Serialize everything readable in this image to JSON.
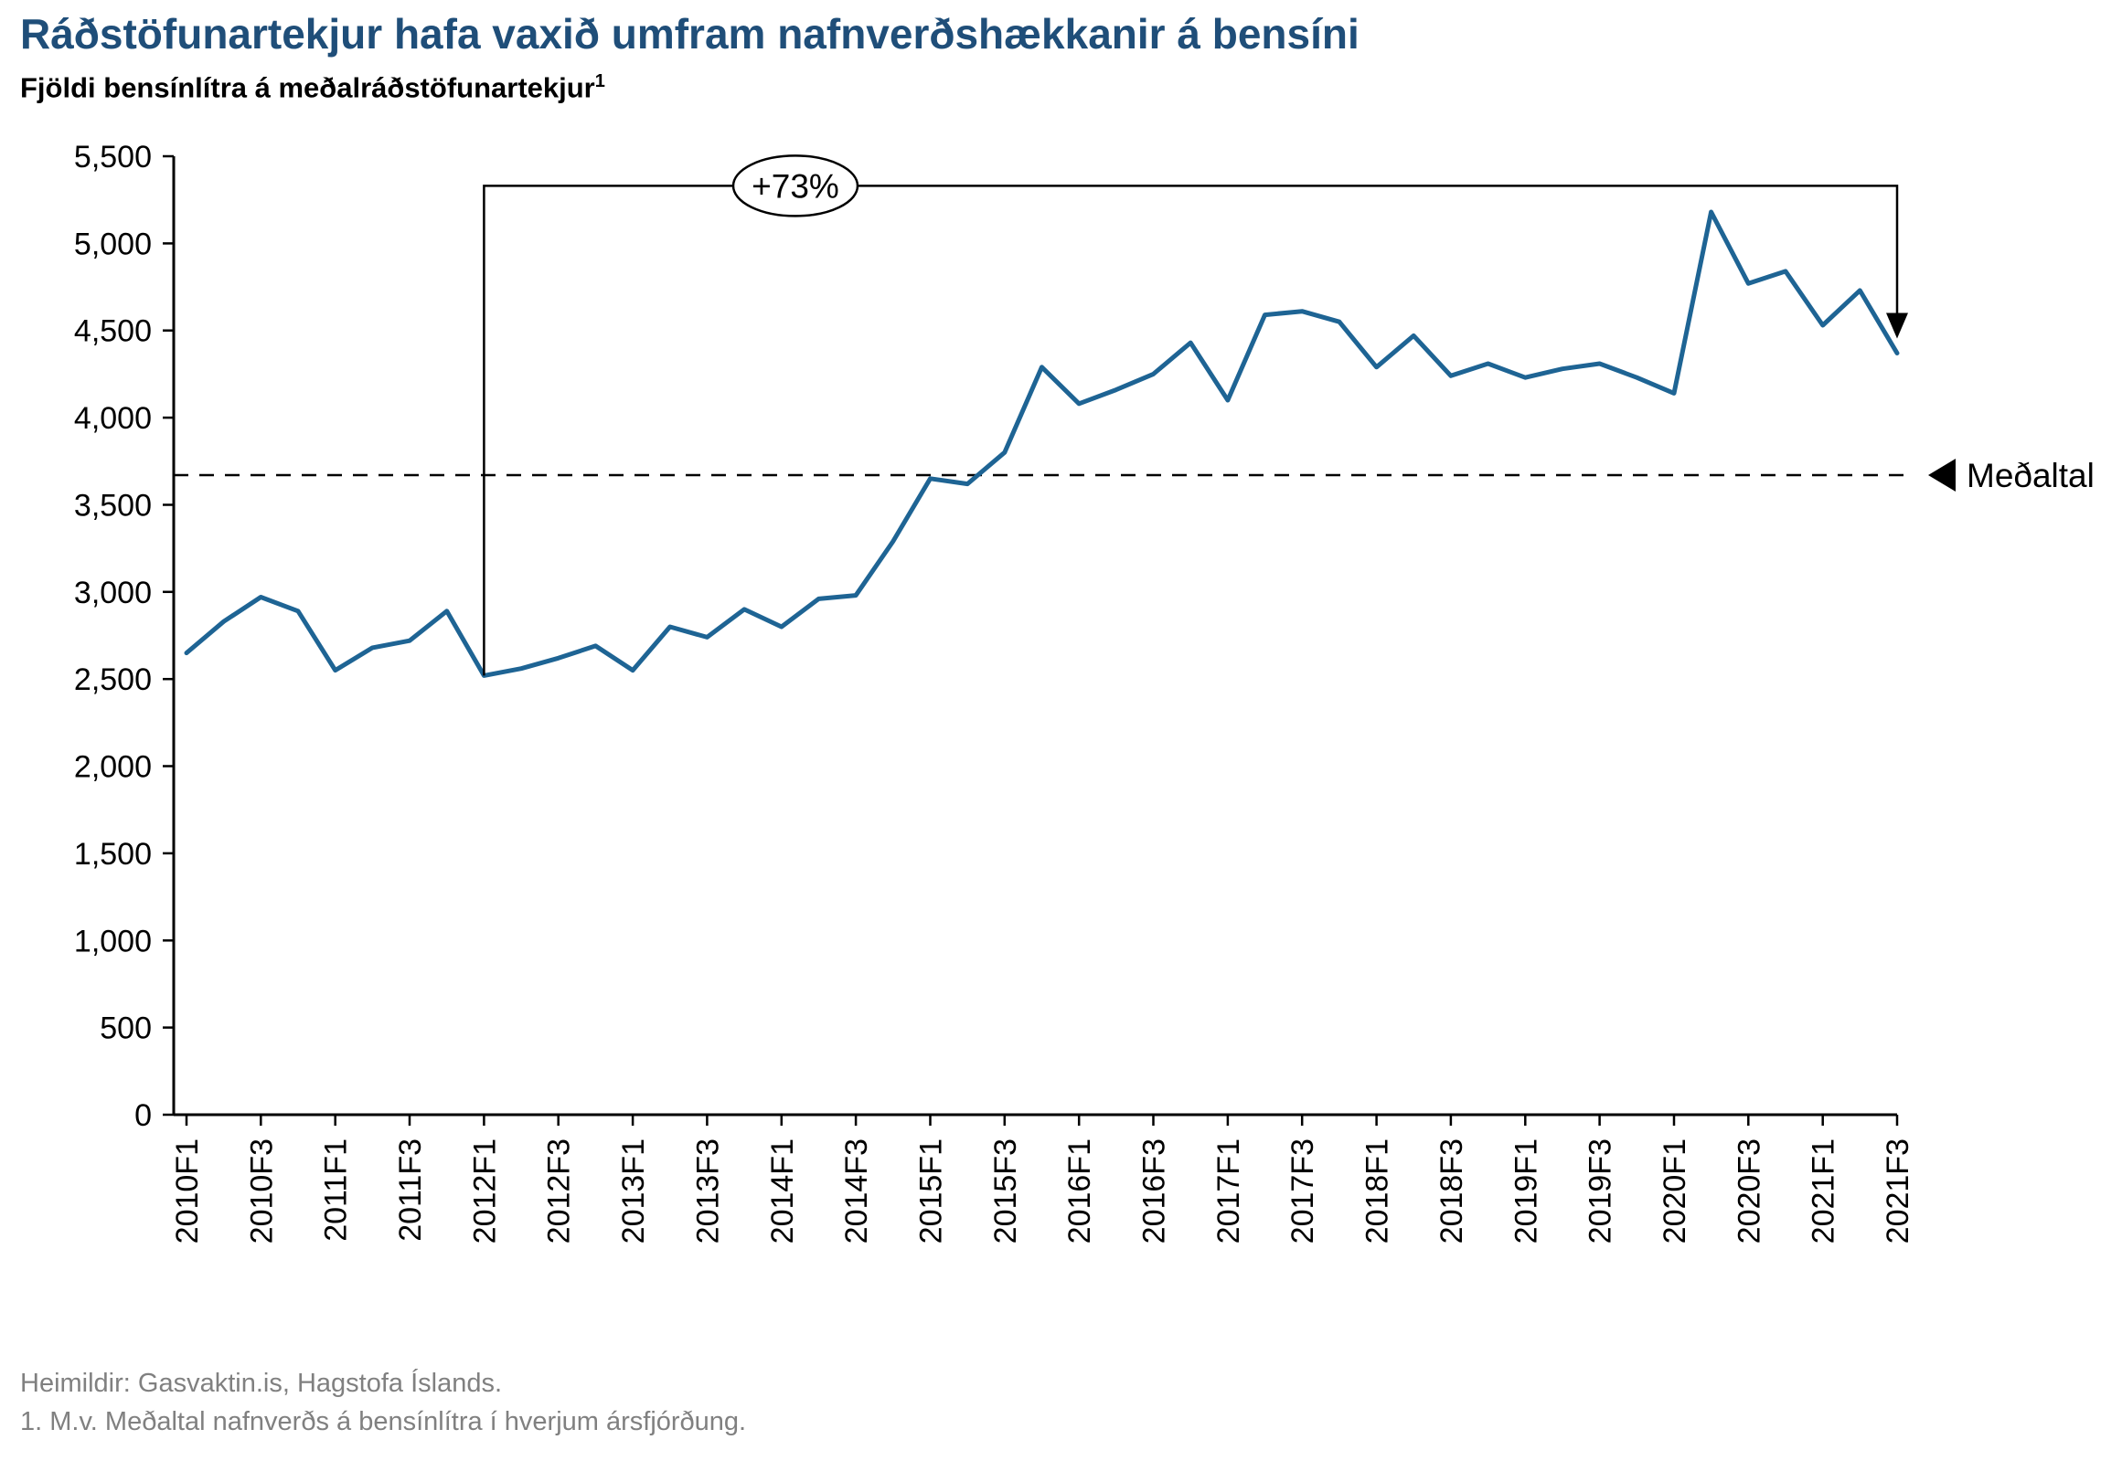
{
  "header": {
    "title": "Ráðstöfunartekjur hafa vaxið umfram nafnverðshækkanir á bensíni",
    "subtitle": "Fjöldi bensínlítra á meðalráðstöfunartekjur",
    "subtitle_superscript": "1"
  },
  "chart_data": {
    "type": "line",
    "title": "Fjöldi bensínlítra á meðalráðstöfunartekjur",
    "xlabel": "",
    "ylabel": "",
    "ylim": [
      0,
      5500
    ],
    "grid": false,
    "line_color": "#1E6494",
    "x": [
      "2010F1",
      "2010F2",
      "2010F3",
      "2010F4",
      "2011F1",
      "2011F2",
      "2011F3",
      "2011F4",
      "2012F1",
      "2012F2",
      "2012F3",
      "2012F4",
      "2013F1",
      "2013F2",
      "2013F3",
      "2013F4",
      "2014F1",
      "2014F2",
      "2014F3",
      "2014F4",
      "2015F1",
      "2015F2",
      "2015F3",
      "2015F4",
      "2016F1",
      "2016F2",
      "2016F3",
      "2016F4",
      "2017F1",
      "2017F2",
      "2017F3",
      "2017F4",
      "2018F1",
      "2018F2",
      "2018F3",
      "2018F4",
      "2019F1",
      "2019F2",
      "2019F3",
      "2019F4",
      "2020F1",
      "2020F2",
      "2020F3",
      "2020F4",
      "2021F1",
      "2021F2",
      "2021F3"
    ],
    "values": [
      2650,
      2830,
      2970,
      2890,
      2550,
      2680,
      2720,
      2890,
      2520,
      2560,
      2620,
      2690,
      2550,
      2800,
      2740,
      2900,
      2800,
      2960,
      2980,
      3290,
      3650,
      3620,
      3800,
      4290,
      4080,
      4160,
      4250,
      4430,
      4100,
      4590,
      4610,
      4550,
      4290,
      4470,
      4240,
      4310,
      4230,
      4280,
      4310,
      4230,
      4140,
      5180,
      4770,
      4840,
      4530,
      4730,
      4370
    ],
    "x_tick_labels": [
      "2010F1",
      "2010F3",
      "2011F1",
      "2011F3",
      "2012F1",
      "2012F3",
      "2013F1",
      "2013F3",
      "2014F1",
      "2014F3",
      "2015F1",
      "2015F3",
      "2016F1",
      "2016F3",
      "2017F1",
      "2017F3",
      "2018F1",
      "2018F3",
      "2019F1",
      "2019F3",
      "2020F1",
      "2020F3",
      "2021F1",
      "2021F3"
    ],
    "y_ticks": {
      "values": [
        0,
        500,
        1000,
        1500,
        2000,
        2500,
        3000,
        3500,
        4000,
        4500,
        5000,
        5500
      ],
      "labels": [
        "0",
        "500",
        "1,000",
        "1,500",
        "2,000",
        "2,500",
        "3,000",
        "3,500",
        "4,000",
        "4,500",
        "5,000",
        "5,500"
      ]
    },
    "average_line": {
      "value": 3670,
      "label": "Meðaltal",
      "style": "dashed",
      "color": "#000000"
    },
    "annotation": {
      "label": "+73%",
      "from_x": "2012F1",
      "to_x": "2021F3",
      "bracket_value": 5330
    },
    "legend": null
  },
  "footer": {
    "source": "Heimildir: Gasvaktin.is, Hagstofa Íslands.",
    "note": "1. M.v. Meðaltal nafnverðs á bensínlítra í hverjum ársfjórðung."
  }
}
